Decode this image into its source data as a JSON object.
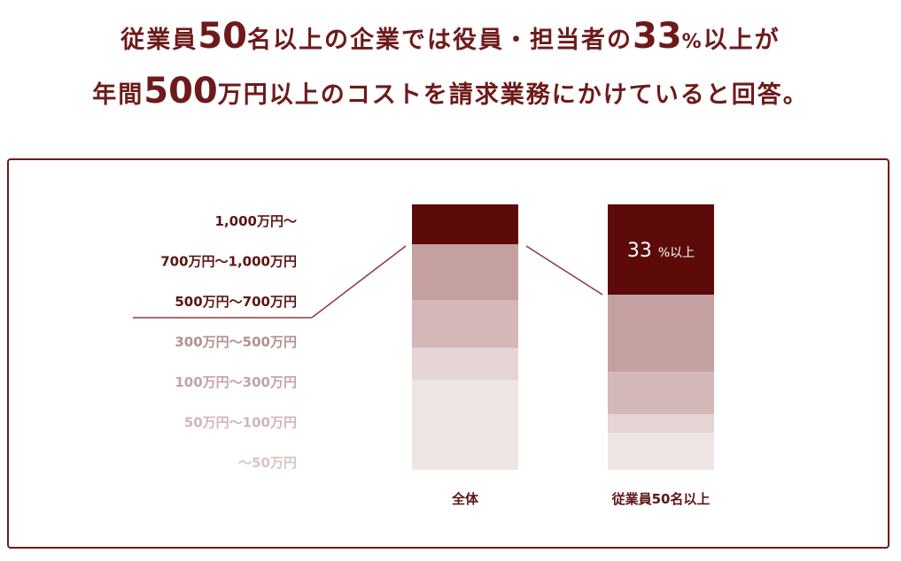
{
  "headline": {
    "line1": {
      "a": "従業員",
      "b": "50",
      "c": "名以上の企業では役員・担当者の",
      "d": "33",
      "e": "%",
      "f": "以上が"
    },
    "line2": {
      "a": "年間",
      "b": "500",
      "c": "万円以上のコストを請求業務にかけていると回答。"
    }
  },
  "colors": {
    "text": "#6e1a1a",
    "border": "#6e1a1a",
    "line": "#8a3a3a",
    "shades": [
      "#5c0a0a",
      "#c4a0a0",
      "#d4b8b8",
      "#e4d4d4",
      "#efe5e5",
      "#efe5e5",
      "#efe5e5"
    ],
    "label_colors": [
      "#5c1515",
      "#5c1515",
      "#5c1515",
      "#b39090",
      "#c4a3a3",
      "#d0b6b6",
      "#d8c4c4"
    ]
  },
  "chart_data": {
    "type": "bar",
    "stacked": true,
    "percent": true,
    "categories": [
      "全体",
      "従業員50名以上"
    ],
    "legend_labels": [
      "1,000万円～",
      "700万円～1,000万円",
      "500万円～700万円",
      "300万円～500万円",
      "100万円～300万円",
      "50万円～100万円",
      "～50万円"
    ],
    "series": [
      {
        "name": "1,000万円～",
        "values": [
          15,
          34
        ]
      },
      {
        "name": "700万円～1,000万円",
        "values": [
          21,
          29
        ]
      },
      {
        "name": "500万円～700万円",
        "values": [
          18,
          16
        ]
      },
      {
        "name": "300万円～500万円",
        "values": [
          12,
          7
        ]
      },
      {
        "name": "100万円～300万円",
        "values": [
          34,
          14
        ]
      },
      {
        "name": "50万円～100万円",
        "values": [
          0,
          0
        ]
      },
      {
        "name": "～50万円",
        "values": [
          0,
          0
        ]
      }
    ],
    "annotation": {
      "value": "33",
      "unit": "%",
      "suffix": "以上"
    },
    "highlight_threshold_label": "500万円～700万円",
    "ylim": [
      0,
      100
    ]
  }
}
